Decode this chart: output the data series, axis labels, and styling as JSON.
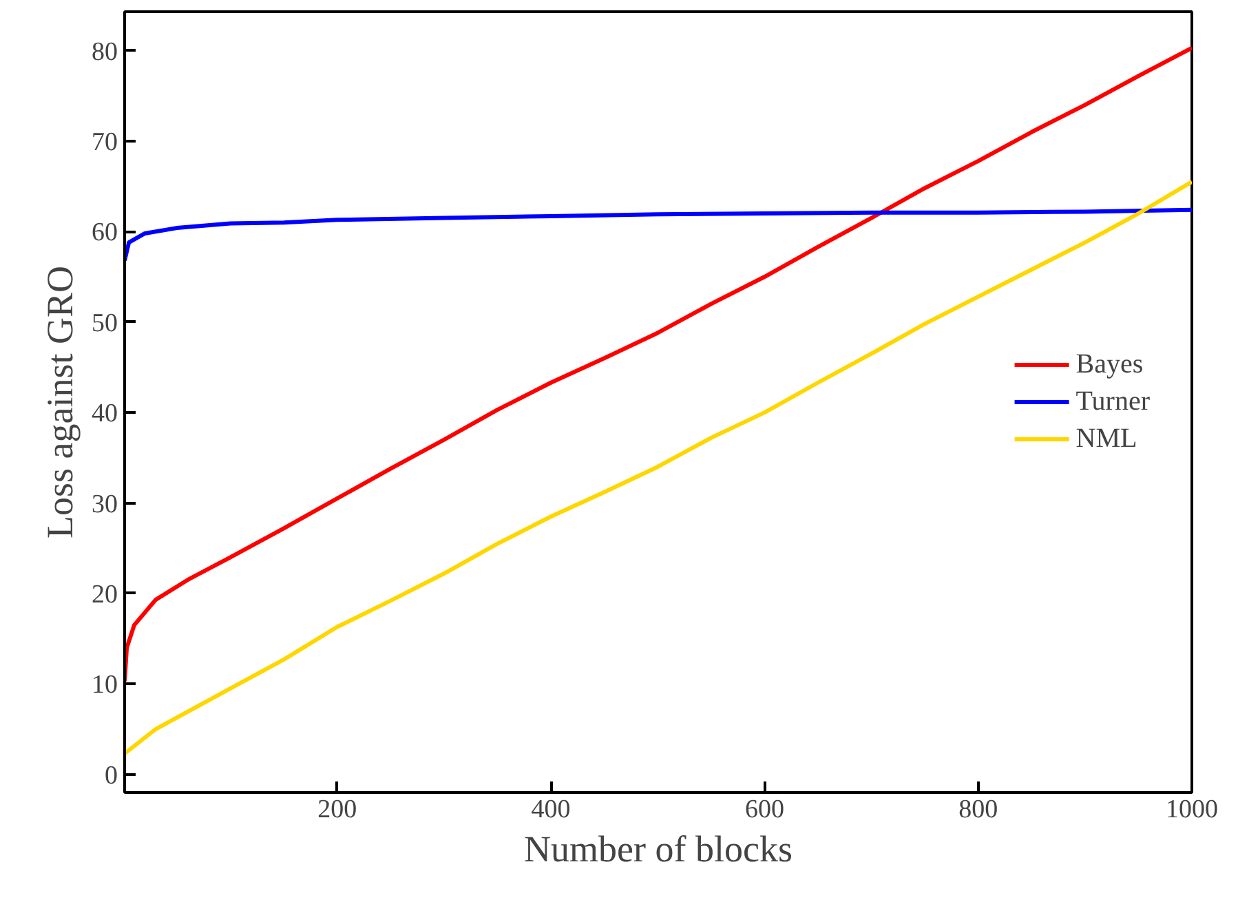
{
  "chart_data": {
    "type": "line",
    "xlabel": "Number of blocks",
    "ylabel": "Loss against GRO",
    "xlim": [
      1,
      1000
    ],
    "ylim": [
      -2,
      84.3
    ],
    "xticks": [
      200,
      400,
      600,
      800,
      1000
    ],
    "yticks": [
      0,
      10,
      20,
      30,
      40,
      50,
      60,
      70,
      80
    ],
    "grid": false,
    "legend": "right",
    "line_style": "solid",
    "marker": "none",
    "series": [
      {
        "name": "Bayes",
        "color": "#ff0000",
        "x": [
          1,
          3,
          10,
          30,
          60,
          100,
          150,
          200,
          250,
          300,
          350,
          400,
          450,
          500,
          550,
          600,
          650,
          700,
          750,
          800,
          850,
          900,
          950,
          1000
        ],
        "values": [
          10.3,
          14,
          16.5,
          19.3,
          21.5,
          24,
          27.2,
          30.5,
          33.8,
          37,
          40.3,
          43.3,
          46,
          48.8,
          52,
          55,
          58.3,
          61.5,
          64.8,
          67.8,
          71,
          74,
          77.2,
          80.3
        ]
      },
      {
        "name": "Turner",
        "color": "#0000ff",
        "x": [
          1,
          5,
          20,
          50,
          100,
          150,
          200,
          300,
          400,
          500,
          600,
          700,
          800,
          900,
          1000
        ],
        "values": [
          56.8,
          58.8,
          59.8,
          60.4,
          60.9,
          61,
          61.3,
          61.5,
          61.7,
          61.9,
          62,
          62.1,
          62.1,
          62.2,
          62.4
        ]
      },
      {
        "name": "NML",
        "color": "#ffd700",
        "x": [
          1,
          30,
          100,
          150,
          200,
          250,
          300,
          350,
          400,
          450,
          500,
          550,
          600,
          650,
          700,
          750,
          800,
          850,
          900,
          950,
          1000
        ],
        "values": [
          2.3,
          5,
          9.5,
          12.7,
          16.3,
          19.2,
          22.2,
          25.5,
          28.5,
          31.2,
          34,
          37.2,
          40,
          43.3,
          46.5,
          49.8,
          52.8,
          55.8,
          58.8,
          62,
          65.5
        ]
      }
    ]
  }
}
